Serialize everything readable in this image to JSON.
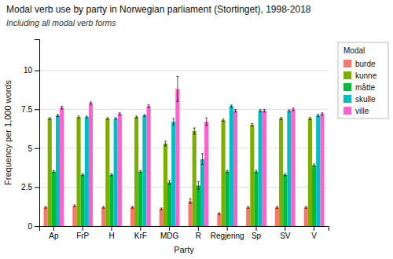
{
  "chart_data": {
    "type": "bar",
    "title": "Modal verb use by party in Norwegian parliament (Stortinget), 1998-2018",
    "subtitle": "Including all modal verb forms",
    "x_label": "Party",
    "y_label": "Frequency per 1,000 words",
    "categories": [
      "Ap",
      "FrP",
      "H",
      "KrF",
      "MDG",
      "R",
      "Regjering",
      "Sp",
      "SV",
      "V"
    ],
    "series": [
      {
        "name": "burde",
        "color": "#F8766D",
        "values": [
          1.2,
          1.3,
          1.2,
          1.2,
          1.1,
          1.6,
          0.8,
          1.2,
          1.2,
          1.2
        ],
        "errors": [
          0.05,
          0.06,
          0.05,
          0.05,
          0.06,
          0.15,
          0.05,
          0.06,
          0.06,
          0.06
        ]
      },
      {
        "name": "kunne",
        "color": "#7CAE00",
        "values": [
          6.9,
          7.0,
          6.9,
          7.0,
          5.3,
          6.1,
          6.8,
          6.5,
          6.9,
          6.9
        ],
        "errors": [
          0.06,
          0.07,
          0.06,
          0.06,
          0.15,
          0.2,
          0.07,
          0.08,
          0.07,
          0.07
        ]
      },
      {
        "name": "måtte",
        "color": "#00BA38",
        "values": [
          3.5,
          3.3,
          3.3,
          3.5,
          2.8,
          2.6,
          3.5,
          3.5,
          3.3,
          3.9
        ],
        "errors": [
          0.07,
          0.07,
          0.07,
          0.07,
          0.12,
          0.25,
          0.08,
          0.08,
          0.07,
          0.08
        ]
      },
      {
        "name": "skulle",
        "color": "#00BFC4",
        "values": [
          7.1,
          7.0,
          6.9,
          7.1,
          6.7,
          4.3,
          7.7,
          7.4,
          7.4,
          7.1
        ],
        "errors": [
          0.06,
          0.06,
          0.06,
          0.06,
          0.2,
          0.35,
          0.07,
          0.07,
          0.07,
          0.07
        ]
      },
      {
        "name": "ville",
        "color": "#FF61CC",
        "values": [
          7.6,
          7.9,
          7.2,
          7.7,
          8.8,
          6.7,
          7.4,
          7.4,
          7.5,
          7.2
        ],
        "errors": [
          0.08,
          0.07,
          0.07,
          0.08,
          0.8,
          0.25,
          0.08,
          0.08,
          0.08,
          0.07
        ]
      }
    ],
    "legend_title": "Modal",
    "legend": "right",
    "ylim": [
      0,
      12
    ],
    "yticks": [
      0,
      2.5,
      5,
      7.5,
      10
    ],
    "grid": true
  }
}
